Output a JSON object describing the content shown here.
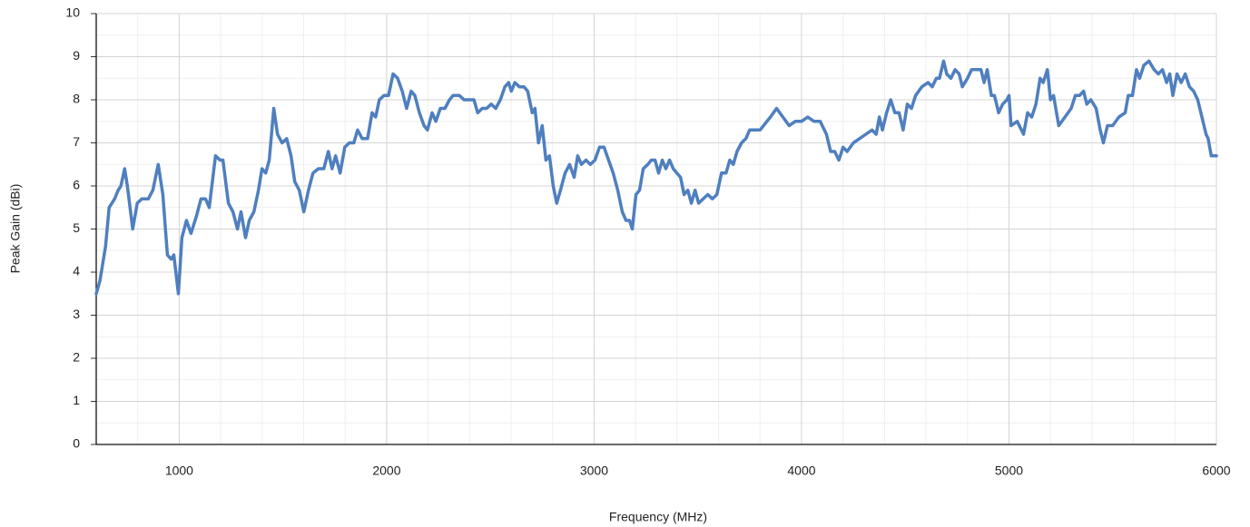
{
  "chart_data": {
    "type": "line",
    "x_label": "Frequency (MHz)",
    "y_label": "Peak Gain (dBi)",
    "xlim": [
      600,
      6000
    ],
    "ylim": [
      0,
      10
    ],
    "xticks": [
      1000,
      2000,
      3000,
      4000,
      5000,
      6000
    ],
    "yticks": [
      0,
      1,
      2,
      3,
      4,
      5,
      6,
      7,
      8,
      9,
      10
    ],
    "x_minor_ticks": [
      600,
      800,
      1200,
      1400,
      1600,
      1800,
      2200,
      2400,
      2600,
      2800,
      3200,
      3400,
      3600,
      3800,
      4200,
      4400,
      4600,
      4800,
      5200,
      5400,
      5600,
      5800
    ],
    "y_minor_ticks": [
      0.5,
      1.5,
      2.5,
      3.5,
      4.5,
      5.5,
      6.5,
      7.5,
      8.5,
      9.5
    ],
    "grid": true,
    "series": [
      {
        "name": "Peak Gain",
        "color": "#4f7fbf",
        "x": [
          600,
          618,
          645,
          662,
          689,
          706,
          719,
          737,
          750,
          776,
          798,
          820,
          851,
          873,
          899,
          921,
          943,
          961,
          974,
          996,
          1013,
          1035,
          1057,
          1083,
          1105,
          1127,
          1145,
          1175,
          1197,
          1211,
          1237,
          1259,
          1281,
          1298,
          1320,
          1338,
          1360,
          1382,
          1399,
          1417,
          1434,
          1456,
          1474,
          1496,
          1518,
          1539,
          1557,
          1579,
          1601,
          1623,
          1645,
          1671,
          1697,
          1719,
          1737,
          1754,
          1776,
          1798,
          1820,
          1842,
          1860,
          1882,
          1908,
          1930,
          1947,
          1965,
          1987,
          2009,
          2031,
          2053,
          2075,
          2096,
          2118,
          2136,
          2158,
          2180,
          2197,
          2219,
          2237,
          2259,
          2281,
          2303,
          2320,
          2351,
          2373,
          2399,
          2421,
          2439,
          2461,
          2482,
          2504,
          2526,
          2548,
          2570,
          2588,
          2601,
          2618,
          2640,
          2662,
          2680,
          2702,
          2715,
          2732,
          2750,
          2768,
          2785,
          2803,
          2820,
          2838,
          2860,
          2882,
          2904,
          2921,
          2939,
          2961,
          2982,
          3004,
          3026,
          3048,
          3070,
          3092,
          3114,
          3136,
          3154,
          3171,
          3184,
          3202,
          3219,
          3237,
          3259,
          3276,
          3294,
          3311,
          3329,
          3346,
          3364,
          3382,
          3399,
          3417,
          3434,
          3452,
          3469,
          3487,
          3504,
          3526,
          3548,
          3570,
          3592,
          3614,
          3636,
          3654,
          3671,
          3689,
          3711,
          3732,
          3750,
          3772,
          3800,
          3850,
          3880,
          3910,
          3940,
          3970,
          4000,
          4030,
          4060,
          4090,
          4120,
          4140,
          4160,
          4180,
          4200,
          4220,
          4250,
          4280,
          4310,
          4340,
          4360,
          4375,
          4390,
          4410,
          4430,
          4450,
          4470,
          4490,
          4510,
          4530,
          4550,
          4580,
          4610,
          4630,
          4650,
          4665,
          4685,
          4700,
          4720,
          4740,
          4760,
          4775,
          4800,
          4820,
          4845,
          4865,
          4880,
          4895,
          4915,
          4930,
          4950,
          4970,
          4990,
          5000,
          5010,
          5040,
          5070,
          5090,
          5110,
          5130,
          5150,
          5165,
          5185,
          5200,
          5215,
          5240,
          5270,
          5300,
          5320,
          5340,
          5360,
          5375,
          5395,
          5420,
          5440,
          5455,
          5475,
          5500,
          5530,
          5560,
          5575,
          5595,
          5615,
          5630,
          5650,
          5675,
          5700,
          5720,
          5740,
          5760,
          5775,
          5790,
          5810,
          5830,
          5850,
          5870,
          5890,
          5910,
          5930,
          5950,
          5960,
          5975,
          6000
        ],
        "values": [
          3.5,
          3.8,
          4.6,
          5.5,
          5.7,
          5.9,
          6.0,
          6.4,
          6.0,
          5.0,
          5.6,
          5.7,
          5.7,
          5.9,
          6.5,
          5.8,
          4.4,
          4.3,
          4.4,
          3.5,
          4.8,
          5.2,
          4.9,
          5.3,
          5.7,
          5.7,
          5.5,
          6.7,
          6.6,
          6.6,
          5.6,
          5.4,
          5.0,
          5.4,
          4.8,
          5.2,
          5.4,
          5.9,
          6.4,
          6.3,
          6.6,
          7.8,
          7.2,
          7.0,
          7.1,
          6.7,
          6.1,
          5.9,
          5.4,
          5.9,
          6.3,
          6.4,
          6.4,
          6.8,
          6.4,
          6.7,
          6.3,
          6.9,
          7.0,
          7.0,
          7.3,
          7.1,
          7.1,
          7.7,
          7.6,
          8.0,
          8.1,
          8.1,
          8.6,
          8.5,
          8.2,
          7.8,
          8.2,
          8.1,
          7.7,
          7.4,
          7.3,
          7.7,
          7.5,
          7.8,
          7.8,
          8.0,
          8.1,
          8.1,
          8.0,
          8.0,
          8.0,
          7.7,
          7.8,
          7.8,
          7.9,
          7.8,
          8.0,
          8.3,
          8.4,
          8.2,
          8.4,
          8.3,
          8.3,
          8.2,
          7.7,
          7.8,
          7.0,
          7.4,
          6.6,
          6.7,
          6.0,
          5.6,
          5.9,
          6.3,
          6.5,
          6.2,
          6.7,
          6.5,
          6.6,
          6.5,
          6.6,
          6.9,
          6.9,
          6.6,
          6.3,
          5.9,
          5.4,
          5.2,
          5.2,
          5.0,
          5.8,
          5.9,
          6.4,
          6.5,
          6.6,
          6.6,
          6.3,
          6.6,
          6.4,
          6.6,
          6.4,
          6.3,
          6.2,
          5.8,
          5.9,
          5.6,
          5.9,
          5.6,
          5.7,
          5.8,
          5.7,
          5.8,
          6.3,
          6.3,
          6.6,
          6.5,
          6.8,
          7.0,
          7.1,
          7.3,
          7.3,
          7.3,
          7.6,
          7.8,
          7.6,
          7.4,
          7.5,
          7.5,
          7.6,
          7.5,
          7.5,
          7.2,
          6.8,
          6.8,
          6.6,
          6.9,
          6.8,
          7.0,
          7.1,
          7.2,
          7.3,
          7.2,
          7.6,
          7.3,
          7.7,
          8.0,
          7.7,
          7.7,
          7.3,
          7.9,
          7.8,
          8.1,
          8.3,
          8.4,
          8.3,
          8.5,
          8.5,
          8.9,
          8.6,
          8.5,
          8.7,
          8.6,
          8.3,
          8.5,
          8.7,
          8.7,
          8.7,
          8.4,
          8.7,
          8.1,
          8.1,
          7.7,
          7.9,
          8.0,
          8.1,
          7.4,
          7.5,
          7.2,
          7.7,
          7.6,
          7.9,
          8.5,
          8.4,
          8.7,
          8.0,
          8.1,
          7.4,
          7.6,
          7.8,
          8.1,
          8.1,
          8.2,
          7.9,
          8.0,
          7.8,
          7.3,
          7.0,
          7.4,
          7.4,
          7.6,
          7.7,
          8.1,
          8.1,
          8.7,
          8.5,
          8.8,
          8.9,
          8.7,
          8.6,
          8.7,
          8.4,
          8.6,
          8.1,
          8.6,
          8.4,
          8.6,
          8.3,
          8.2,
          8.0,
          7.6,
          7.2,
          7.1,
          6.7,
          6.7
        ]
      }
    ]
  }
}
